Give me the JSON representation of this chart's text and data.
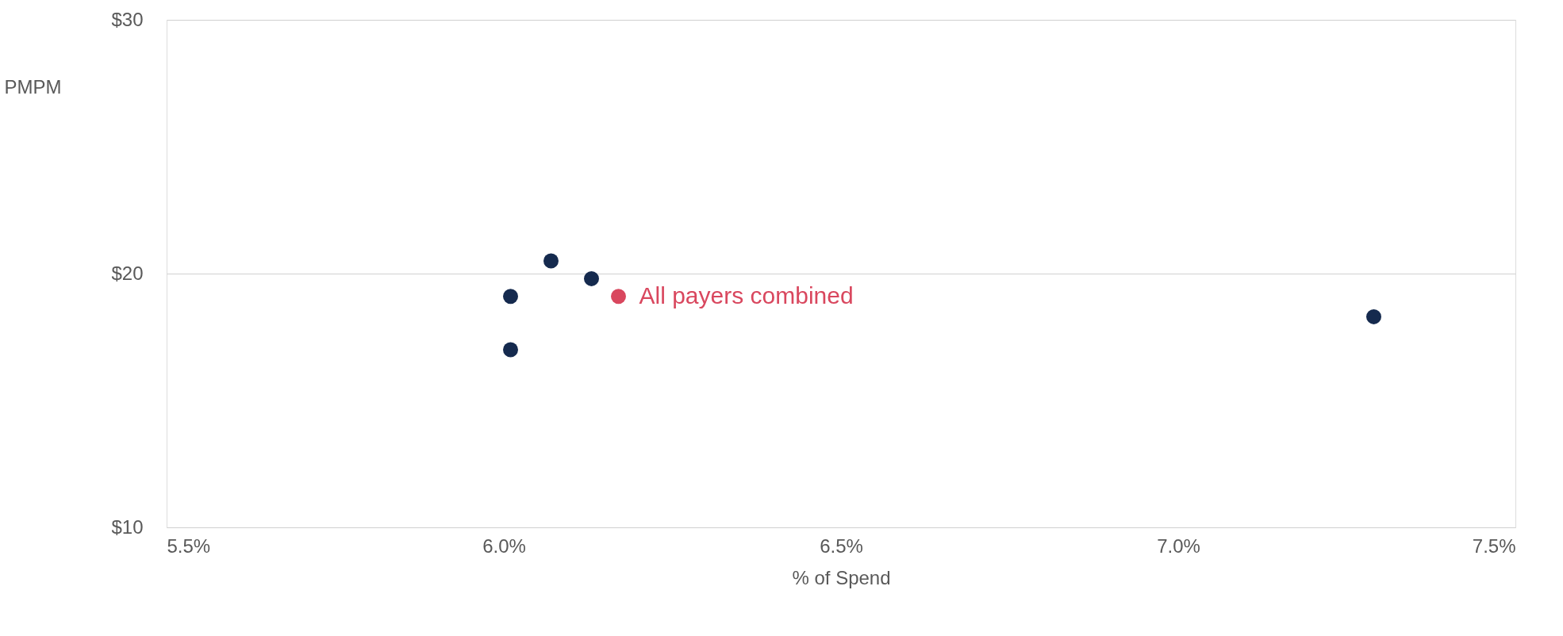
{
  "chart_data": {
    "type": "scatter",
    "xlabel": "% of Spend",
    "ylabel": "PMPM",
    "xlim": [
      5.5,
      7.5
    ],
    "ylim": [
      10,
      30
    ],
    "xticks": [
      {
        "value": 5.5,
        "label": "5.5%"
      },
      {
        "value": 6.0,
        "label": "6.0%"
      },
      {
        "value": 6.5,
        "label": "6.5%"
      },
      {
        "value": 7.0,
        "label": "7.0%"
      },
      {
        "value": 7.5,
        "label": "7.5%"
      }
    ],
    "yticks": [
      {
        "value": 10,
        "label": "$10"
      },
      {
        "value": 20,
        "label": "$20"
      },
      {
        "value": 30,
        "label": "$30"
      }
    ],
    "grid": "y",
    "marker": "circle",
    "series": [
      {
        "color": "#152a4e",
        "x": [
          6.01,
          6.01,
          6.07,
          6.13,
          7.29
        ],
        "values": [
          19.1,
          17.0,
          20.5,
          19.8,
          18.3
        ]
      },
      {
        "name": "All payers combined",
        "color": "#d9475e",
        "x": [
          6.17
        ],
        "values": [
          19.1
        ]
      }
    ]
  }
}
